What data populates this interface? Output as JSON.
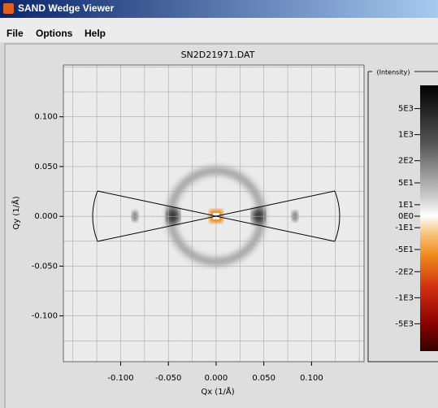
{
  "window": {
    "title": "SAND Wedge Viewer"
  },
  "menu": [
    "File",
    "Options",
    "Help"
  ],
  "chart_data": {
    "type": "heatmap",
    "title": "SN2D21971.DAT",
    "x_label": "Qx (1/Å)",
    "y_label": "Qy (1/Å)",
    "xlim": [
      -0.16,
      0.155
    ],
    "ylim": [
      -0.146,
      0.152
    ],
    "xticks": [
      {
        "value": -0.1,
        "label": "-0.100"
      },
      {
        "value": -0.05,
        "label": "-0.050"
      },
      {
        "value": 0,
        "label": "0.000"
      },
      {
        "value": 0.05,
        "label": "0.050"
      },
      {
        "value": 0.1,
        "label": "0.100"
      }
    ],
    "yticks": [
      {
        "value": 0.1,
        "label": "0.100"
      },
      {
        "value": 0.05,
        "label": "0.050"
      },
      {
        "value": 0,
        "label": "0.000"
      },
      {
        "value": -0.05,
        "label": "-0.050"
      },
      {
        "value": -0.1,
        "label": "-0.100"
      }
    ],
    "x_minor_grid": [
      -0.15,
      -0.125,
      -0.075,
      -0.025,
      0.025,
      0.075,
      0.125,
      0.15
    ],
    "y_minor_grid": [
      0.15,
      0.125,
      0.075,
      0.025,
      -0.025,
      -0.075,
      -0.125
    ],
    "grid": true,
    "colorbar": {
      "label": "(Intensity)",
      "scale": "symlog",
      "lim": [
        -27000,
        21000
      ],
      "ticks": [
        {
          "value": 5000,
          "label": "5E3"
        },
        {
          "value": 1000,
          "label": "1E3"
        },
        {
          "value": 200,
          "label": "2E2"
        },
        {
          "value": 50,
          "label": "5E1"
        },
        {
          "value": 10,
          "label": "1E1"
        },
        {
          "value": 0,
          "label": "0E0"
        },
        {
          "value": -10,
          "label": "-1E1"
        },
        {
          "value": -50,
          "label": "-5E1"
        },
        {
          "value": -200,
          "label": "-2E2"
        },
        {
          "value": -1000,
          "label": "-1E3"
        },
        {
          "value": -5000,
          "label": "-5E3"
        }
      ]
    }
  }
}
